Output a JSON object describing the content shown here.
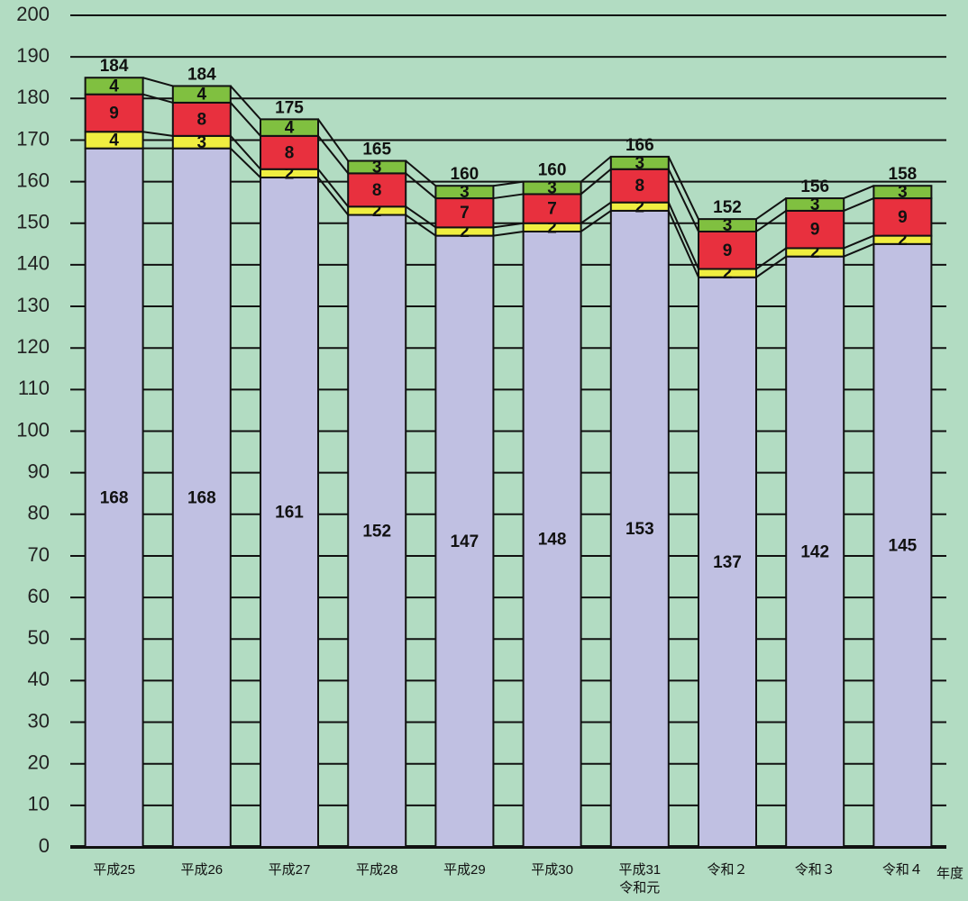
{
  "chart_data": {
    "type": "stacked_bar",
    "categories": [
      "平成25",
      "平成26",
      "平成27",
      "平成28",
      "平成29",
      "平成30",
      [
        "平成31",
        "令和元"
      ],
      "令和２",
      "令和３",
      "令和４"
    ],
    "x_label": "年度",
    "series": [
      {
        "color": "#c0c0e2",
        "values": [
          168,
          168,
          161,
          152,
          147,
          148,
          153,
          137,
          142,
          145
        ]
      },
      {
        "color": "#f0ee40",
        "values": [
          4,
          3,
          2,
          2,
          2,
          2,
          2,
          2,
          2,
          2
        ]
      },
      {
        "color": "#e8303e",
        "values": [
          9,
          8,
          8,
          8,
          7,
          7,
          8,
          9,
          9,
          9
        ]
      },
      {
        "color": "#80c040",
        "values": [
          4,
          4,
          4,
          3,
          3,
          3,
          3,
          3,
          3,
          3
        ]
      }
    ],
    "totals": [
      184,
      184,
      175,
      165,
      160,
      160,
      166,
      152,
      156,
      158
    ],
    "ylim": [
      0,
      200
    ],
    "yticks": [
      0,
      10,
      20,
      30,
      40,
      50,
      60,
      70,
      80,
      90,
      100,
      110,
      120,
      130,
      140,
      150,
      160,
      170,
      180,
      190,
      200
    ],
    "grid": true
  }
}
